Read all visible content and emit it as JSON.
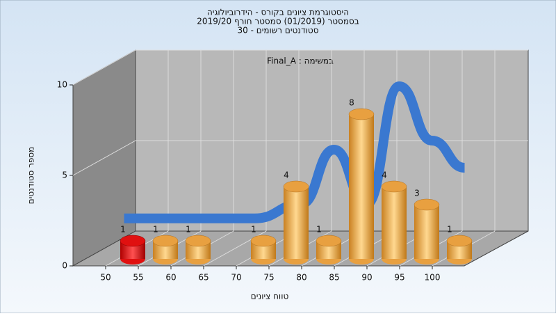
{
  "chart_data": {
    "type": "bar",
    "title": [
      "היסטוגרמת ציונים בקורס - הידרוביולוגיה",
      "בסמסטר  (01/2019)  סמסטר חורף 2019/20",
      "סטודנטים רשומים - 30"
    ],
    "annotation": "Final_A : במשימה",
    "y_label": "מספר סטודנטים",
    "x_label": "טווח ציונים",
    "categories": [
      "50",
      "55",
      "60",
      "65",
      "70",
      "75",
      "80",
      "85",
      "90",
      "95",
      "100"
    ],
    "values": [
      1,
      1,
      1,
      0,
      1,
      4,
      1,
      8,
      4,
      3,
      1
    ],
    "colors": [
      "#e01010",
      "#e8a040",
      "#e8a040",
      "#e8a040",
      "#e8a040",
      "#e8a040",
      "#e8a040",
      "#e8a040",
      "#e8a040",
      "#e8a040",
      "#e8a040"
    ],
    "curve": {
      "color": "#3a78d0",
      "values": [
        0.7,
        0.7,
        0.7,
        0.7,
        0.7,
        1.5,
        4.5,
        1.5,
        8,
        5,
        3.5
      ]
    },
    "ylim": [
      0,
      10
    ],
    "yticks": [
      0,
      5,
      10
    ],
    "grid": true
  }
}
